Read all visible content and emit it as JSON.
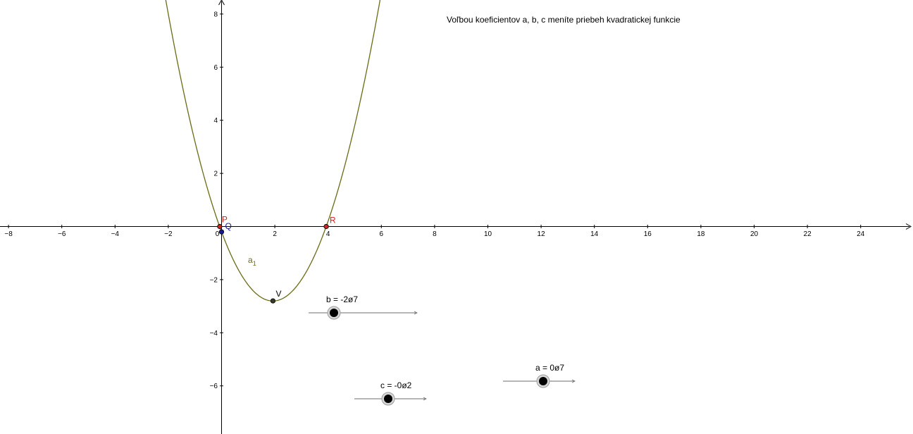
{
  "title": "Voľbou koeficientov a, b, c meníte priebeh kvadratickej funkcie",
  "colors": {
    "curve": "#6b6b16",
    "point_red": "#cc2222",
    "point_blue": "#1a1a8c",
    "point_vertex": "#3a3a2a",
    "axis": "#000000",
    "slider_line": "#6e6e6e",
    "slider_knob": "#000000"
  },
  "axes": {
    "x_ticks": [
      "−8",
      "−6",
      "−4",
      "−2",
      "0",
      "2",
      "4",
      "6",
      "8",
      "10",
      "12",
      "14",
      "16",
      "18",
      "20",
      "22",
      "24"
    ],
    "y_ticks": [
      "8",
      "6",
      "4",
      "2",
      "−2",
      "−4",
      "−6"
    ],
    "x_tick_values": [
      -8,
      -6,
      -4,
      -2,
      0,
      2,
      4,
      6,
      8,
      10,
      12,
      14,
      16,
      18,
      20,
      22,
      24
    ],
    "y_tick_values": [
      8,
      6,
      4,
      2,
      -2,
      -4,
      -6
    ]
  },
  "function": {
    "label": "a",
    "label_sub": "1",
    "a": 0.7,
    "b": -2.7,
    "c": -0.2
  },
  "points": [
    {
      "name": "P",
      "x": -0.07,
      "y": 0,
      "color_key": "point_red"
    },
    {
      "name": "Q",
      "x": 0,
      "y": -0.2,
      "color_key": "point_blue"
    },
    {
      "name": "R",
      "x": 3.93,
      "y": 0,
      "color_key": "point_red"
    },
    {
      "name": "V",
      "x": 1.93,
      "y": -2.8,
      "color_key": "point_vertex"
    }
  ],
  "sliders": [
    {
      "id": "b",
      "label": "b = -2ø7",
      "value": -2.7
    },
    {
      "id": "c",
      "label": "c = -0ø2",
      "value": -0.2
    },
    {
      "id": "a",
      "label": "a = 0ø7",
      "value": 0.7
    }
  ]
}
